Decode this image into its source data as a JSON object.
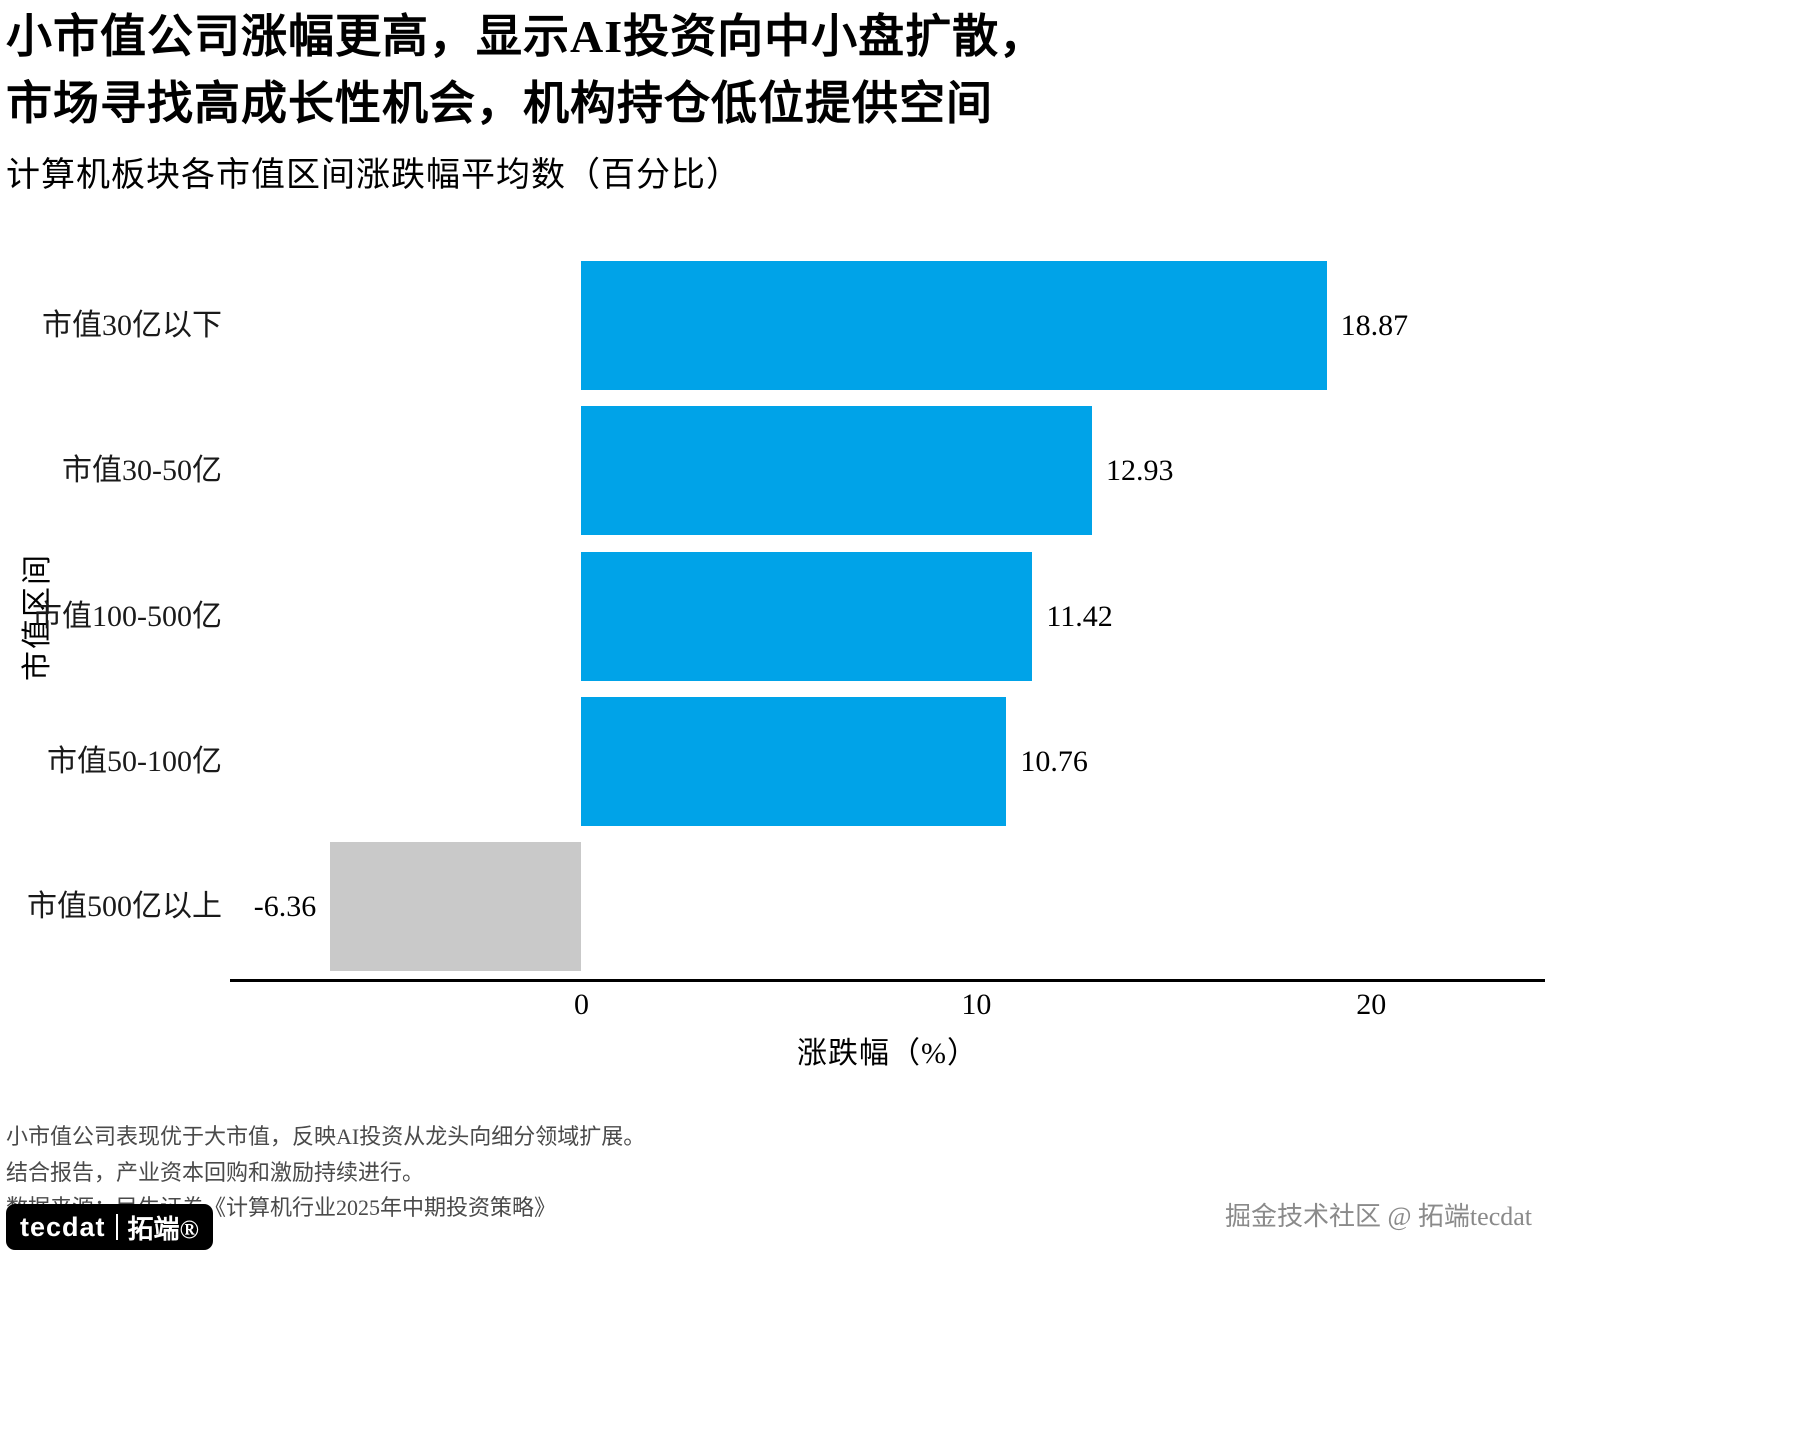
{
  "title": {
    "line1": "小市值公司涨幅更高，显示AI投资向中小盘扩散，",
    "line2": "市场寻找高成长性机会，机构持仓低位提供空间",
    "subtitle": "计算机板块各市值区间涨跌幅平均数（百分比）"
  },
  "chart_data": {
    "type": "bar",
    "orientation": "horizontal",
    "categories": [
      "市值30亿以下",
      "市值30-50亿",
      "市值100-500亿",
      "市值50-100亿",
      "市值500亿以上"
    ],
    "values": [
      18.87,
      12.93,
      11.42,
      10.76,
      -6.36
    ],
    "value_labels": [
      "18.87",
      "12.93",
      "11.42",
      "10.76",
      "-6.36"
    ],
    "xlabel": "涨跌幅（%）",
    "ylabel": "市值区间",
    "xlim": [
      -8.9,
      24.4
    ],
    "xticks": [
      0,
      10,
      20
    ],
    "grid": false,
    "legend": "none",
    "bar_color_positive": "#00A3E8",
    "bar_color_negative": "#C9C9C9"
  },
  "footer": {
    "note1": "小市值公司表现优于大市值，反映AI投资从龙头向细分领域扩展。",
    "note2": "结合报告，产业资本回购和激励持续进行。",
    "source": "数据来源：民生证券《计算机行业2025年中期投资策略》"
  },
  "branding": {
    "logo_text": "tecdat",
    "logo_suffix": "拓端®",
    "watermark": "掘金技术社区 @ 拓端tecdat"
  }
}
